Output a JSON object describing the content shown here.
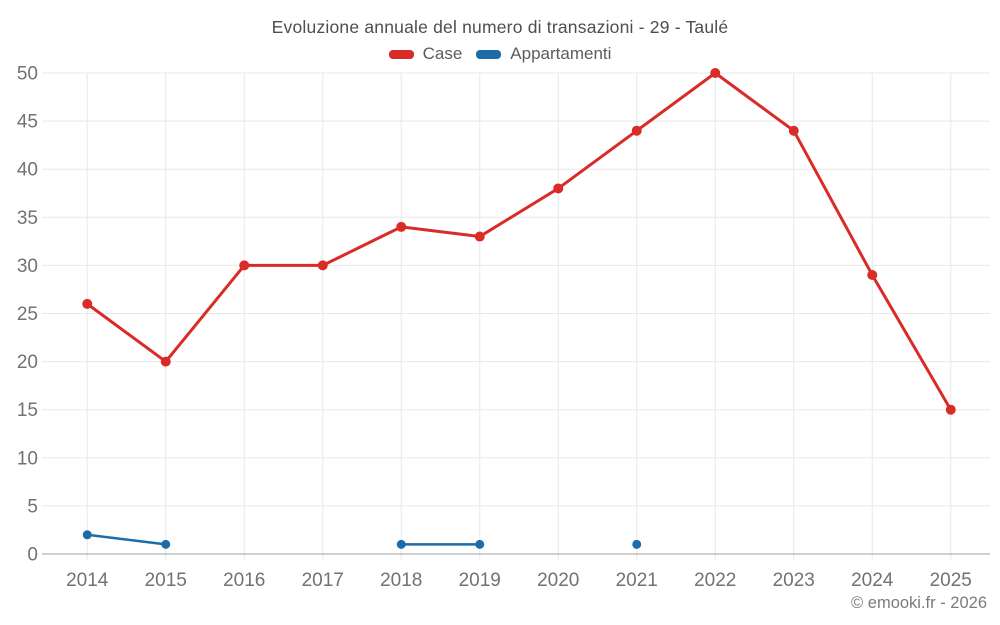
{
  "title": "Evoluzione annuale del numero di transazioni - 29 - Taulé",
  "legend": {
    "items": [
      {
        "label": "Case",
        "color": "#d92b28"
      },
      {
        "label": "Appartamenti",
        "color": "#1b6ca8"
      }
    ]
  },
  "footer": {
    "copyright": "© emooki.fr - 2026"
  },
  "colors": {
    "grid": "#e8e8e8",
    "axis_line": "#b5b5b5",
    "tick_label": "#727272",
    "background": "#ffffff"
  },
  "chart_data": {
    "type": "line",
    "title": "Evoluzione annuale del numero di transazioni - 29 - Taulé",
    "xlabel": "",
    "ylabel": "",
    "categories": [
      "2014",
      "2015",
      "2016",
      "2017",
      "2018",
      "2019",
      "2020",
      "2021",
      "2022",
      "2023",
      "2024",
      "2025"
    ],
    "series": [
      {
        "name": "Case",
        "color": "#d92b28",
        "values": [
          26,
          20,
          30,
          30,
          34,
          33,
          38,
          44,
          50,
          44,
          29,
          15
        ]
      },
      {
        "name": "Appartamenti",
        "color": "#1b6ca8",
        "values": [
          2,
          1,
          null,
          null,
          1,
          1,
          null,
          1,
          null,
          null,
          null,
          null
        ]
      }
    ],
    "ylim": [
      0,
      50
    ],
    "ytick_step": 5,
    "grid": true,
    "legend_position": "top"
  }
}
